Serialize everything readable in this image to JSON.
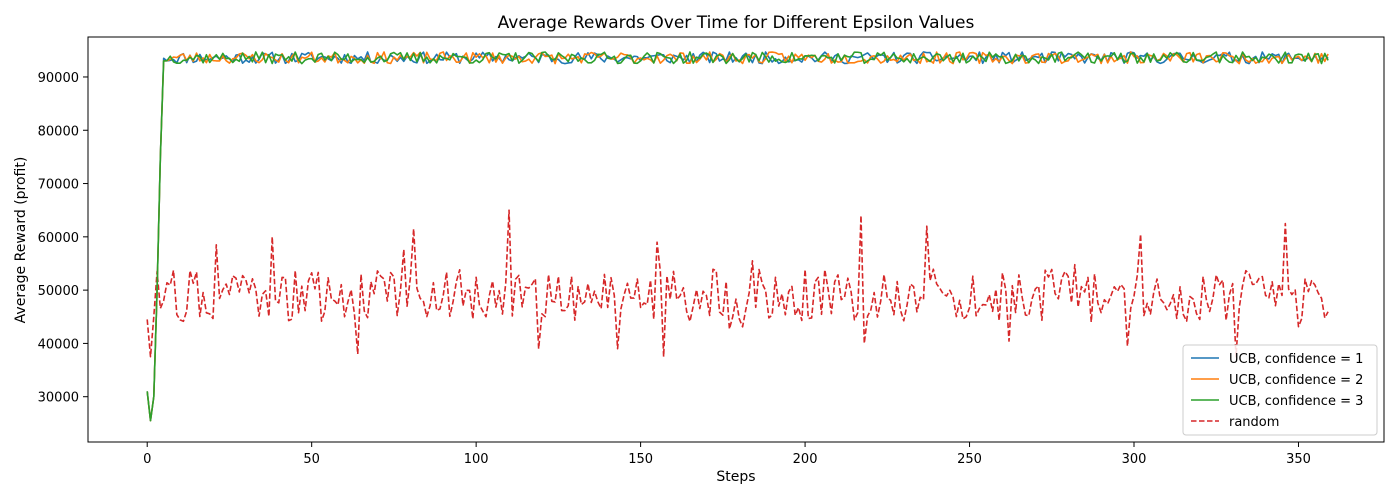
{
  "chart_data": {
    "type": "line",
    "title": "Average Rewards Over Time for Different Epsilon Values",
    "xlabel": "Steps",
    "ylabel": "Average Reward (profit)",
    "xlim": [
      -18,
      376
    ],
    "ylim": [
      21500,
      97500
    ],
    "xticks": [
      0,
      50,
      100,
      150,
      200,
      250,
      300,
      350
    ],
    "yticks": [
      30000,
      40000,
      50000,
      60000,
      70000,
      80000,
      90000
    ],
    "grid": false,
    "legend_position": "lower-right",
    "n_steps": 360,
    "series": [
      {
        "name": "UCB, confidence = 1",
        "color": "#1f77b4",
        "dash": "solid",
        "start": [
          31000,
          25500,
          30000,
          50000,
          75000,
          93500
        ],
        "plateau_mean": 93600,
        "plateau_amplitude": 1100,
        "seed": 11
      },
      {
        "name": "UCB, confidence = 2",
        "color": "#ff7f0e",
        "dash": "solid",
        "start": [
          31000,
          25500,
          30000,
          50000,
          75000,
          93000
        ],
        "plateau_mean": 93600,
        "plateau_amplitude": 1100,
        "seed": 23
      },
      {
        "name": "UCB, confidence = 3",
        "color": "#2ca02c",
        "dash": "solid",
        "start": [
          31000,
          25500,
          30000,
          50000,
          75000,
          93000
        ],
        "plateau_mean": 93600,
        "plateau_amplitude": 1100,
        "seed": 37
      },
      {
        "name": "random",
        "color": "#d62728",
        "dash": "dashed",
        "start": [
          44500,
          37500,
          45000,
          53500
        ],
        "plateau_mean": 49000,
        "plateau_amplitude": 5000,
        "seed": 59,
        "peaks": [
          [
            21,
            58500
          ],
          [
            38,
            60000
          ],
          [
            81,
            61500
          ],
          [
            110,
            65000
          ],
          [
            155,
            59000
          ],
          [
            217,
            64000
          ],
          [
            237,
            62000
          ],
          [
            302,
            60500
          ],
          [
            346,
            62500
          ]
        ],
        "troughs": [
          [
            64,
            38000
          ],
          [
            119,
            39000
          ],
          [
            143,
            39000
          ],
          [
            157,
            37500
          ],
          [
            218,
            40000
          ],
          [
            298,
            39500
          ],
          [
            331,
            37500
          ]
        ]
      }
    ]
  }
}
